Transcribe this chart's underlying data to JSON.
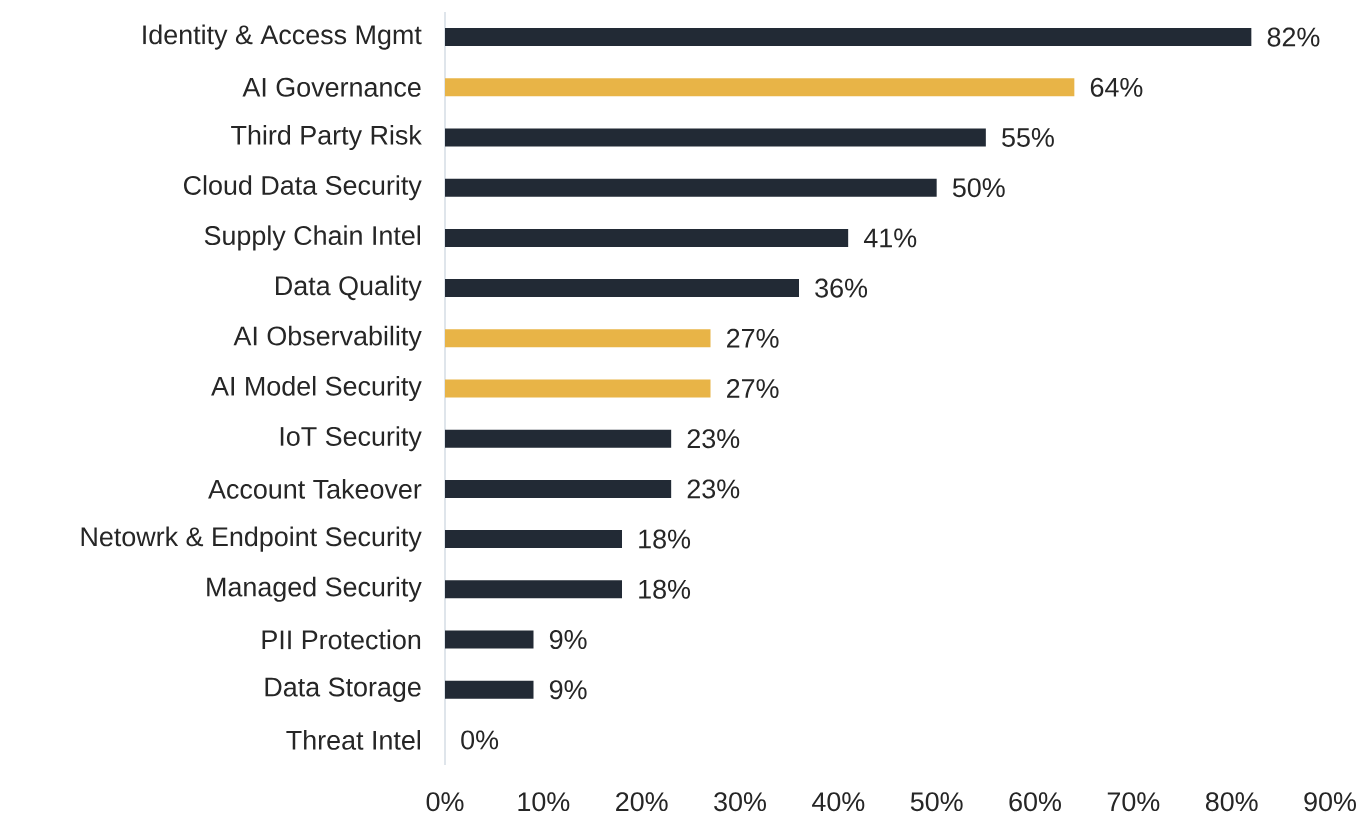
{
  "chart_data": {
    "type": "bar",
    "orientation": "horizontal",
    "categories": [
      "Identity & Access Mgmt",
      "AI Governance",
      "Third Party Risk",
      "Cloud Data Security",
      "Supply Chain Intel",
      "Data Quality",
      "AI Observability",
      "AI Model Security",
      "IoT Security",
      "Account Takeover",
      "Netowrk & Endpoint Security",
      "Managed Security",
      "PII Protection",
      "Data Storage",
      "Threat Intel"
    ],
    "values": [
      82,
      64,
      55,
      50,
      41,
      36,
      27,
      27,
      23,
      23,
      18,
      18,
      9,
      9,
      0
    ],
    "value_labels": [
      "82%",
      "64%",
      "55%",
      "50%",
      "41%",
      "36%",
      "27%",
      "27%",
      "23%",
      "23%",
      "18%",
      "18%",
      "9%",
      "9%",
      "0%"
    ],
    "colors": [
      "#222a35",
      "#e8b447",
      "#222a35",
      "#222a35",
      "#222a35",
      "#222a35",
      "#e8b447",
      "#e8b447",
      "#222a35",
      "#222a35",
      "#222a35",
      "#222a35",
      "#222a35",
      "#222a35",
      "#222a35"
    ],
    "xlim": [
      0,
      90
    ],
    "xticks": [
      {
        "value": 0,
        "label": "0%"
      },
      {
        "value": 10,
        "label": "10%"
      },
      {
        "value": 20,
        "label": "20%"
      },
      {
        "value": 30,
        "label": "30%"
      },
      {
        "value": 40,
        "label": "40%"
      },
      {
        "value": 50,
        "label": "50%"
      },
      {
        "value": 60,
        "label": "60%"
      },
      {
        "value": 70,
        "label": "70%"
      },
      {
        "value": 80,
        "label": "80%"
      },
      {
        "value": 90,
        "label": "90%"
      }
    ]
  }
}
